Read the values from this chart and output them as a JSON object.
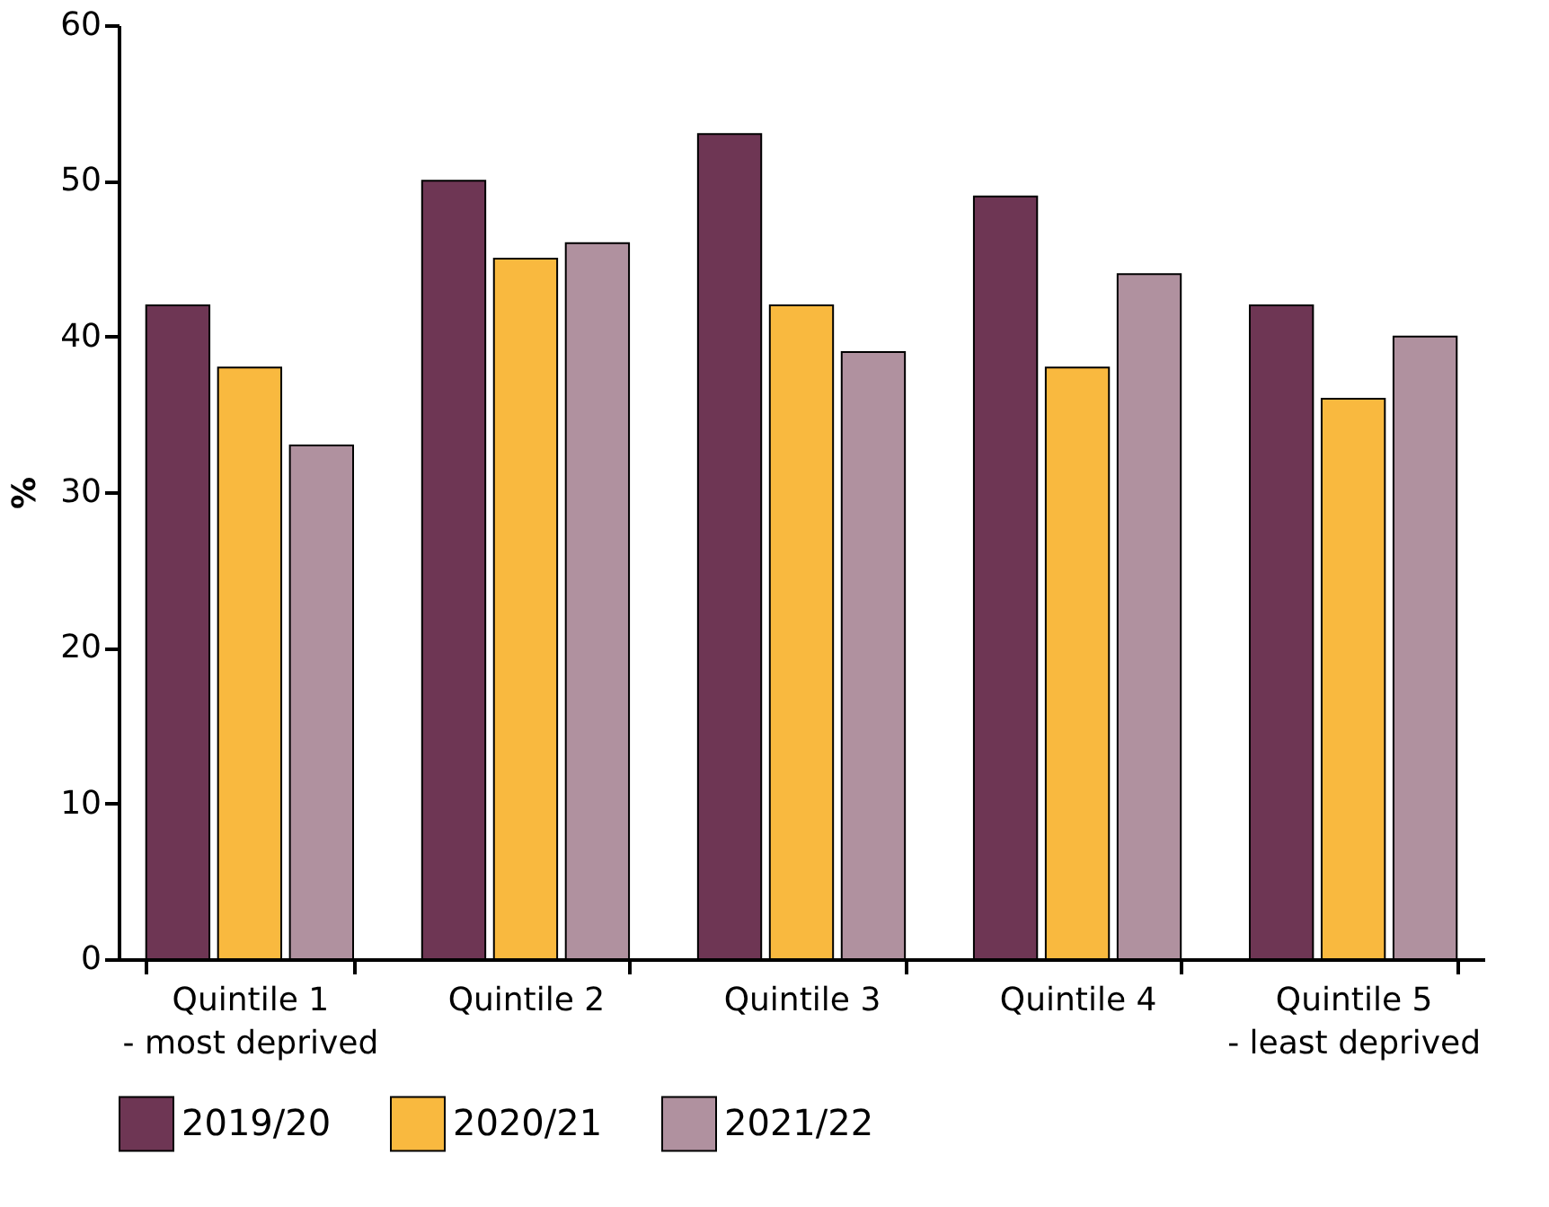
{
  "chart_data": {
    "type": "bar",
    "ylabel": "%",
    "categories": [
      "Quintile 1\n- most deprived",
      "Quintile 2",
      "Quintile 3",
      "Quintile 4",
      "Quintile 5\n- least deprived"
    ],
    "series": [
      {
        "name": "2019/20",
        "color": "#6e3654",
        "values": [
          42,
          50,
          53,
          49,
          42
        ]
      },
      {
        "name": "2020/21",
        "color": "#f9b93f",
        "values": [
          38,
          45,
          42,
          38,
          36
        ]
      },
      {
        "name": "2021/22",
        "color": "#b0919f",
        "values": [
          33,
          46,
          39,
          44,
          40
        ]
      }
    ],
    "ylim": [
      0,
      60
    ],
    "yticks": [
      0,
      10,
      20,
      30,
      40,
      50,
      60
    ],
    "grid": false,
    "legend": "bottom"
  }
}
